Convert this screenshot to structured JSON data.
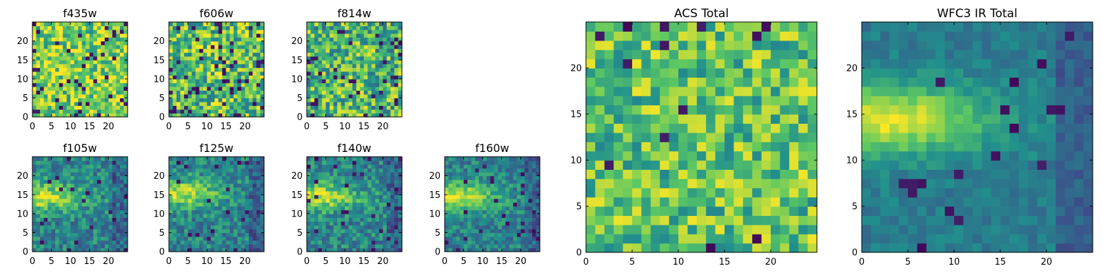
{
  "figure": {
    "description_panels": 9
  },
  "colormap": {
    "name": "viridis",
    "stops": [
      "#440154",
      "#3b528b",
      "#21908d",
      "#5dc962",
      "#fde725"
    ]
  },
  "chart_data": [
    {
      "type": "heatmap",
      "title": "f435w",
      "grid_size": 25,
      "xlim": [
        0,
        25
      ],
      "ylim": [
        0,
        25
      ],
      "xticks": [
        0,
        5,
        10,
        15,
        20
      ],
      "yticks": [
        0,
        5,
        10,
        15,
        20
      ],
      "pattern": "noise",
      "mean_level": 0.78,
      "noise": 0.28,
      "dark_fraction": 0.07,
      "seed": 11
    },
    {
      "type": "heatmap",
      "title": "f606w",
      "grid_size": 25,
      "xlim": [
        0,
        25
      ],
      "ylim": [
        0,
        25
      ],
      "xticks": [
        0,
        5,
        10,
        15,
        20
      ],
      "yticks": [
        0,
        5,
        10,
        15,
        20
      ],
      "pattern": "noise",
      "mean_level": 0.72,
      "noise": 0.32,
      "dark_fraction": 0.08,
      "seed": 23
    },
    {
      "type": "heatmap",
      "title": "f814w",
      "grid_size": 25,
      "xlim": [
        0,
        25
      ],
      "ylim": [
        0,
        25
      ],
      "xticks": [
        0,
        5,
        10,
        15,
        20
      ],
      "yticks": [
        0,
        5,
        10,
        15,
        20
      ],
      "pattern": "noise",
      "mean_level": 0.66,
      "noise": 0.32,
      "dark_fraction": 0.06,
      "seed": 37
    },
    {
      "type": "heatmap",
      "title": "f105w",
      "grid_size": 25,
      "xlim": [
        0,
        25
      ],
      "ylim": [
        0,
        25
      ],
      "xticks": [
        0,
        5,
        10,
        15,
        20
      ],
      "yticks": [
        0,
        5,
        10,
        15,
        20
      ],
      "pattern": "source",
      "mean_level": 0.45,
      "noise": 0.18,
      "dark_fraction": 0.04,
      "blob_peak": [
        2,
        14
      ],
      "blob_strength": 0.45,
      "seed": 41
    },
    {
      "type": "heatmap",
      "title": "f125w",
      "grid_size": 25,
      "xlim": [
        0,
        25
      ],
      "ylim": [
        0,
        25
      ],
      "xticks": [
        0,
        5,
        10,
        15,
        20
      ],
      "yticks": [
        0,
        5,
        10,
        15,
        20
      ],
      "pattern": "source",
      "mean_level": 0.45,
      "noise": 0.18,
      "dark_fraction": 0.04,
      "blob_peak": [
        2,
        15
      ],
      "blob_strength": 0.45,
      "seed": 53
    },
    {
      "type": "heatmap",
      "title": "f140w",
      "grid_size": 25,
      "xlim": [
        0,
        25
      ],
      "ylim": [
        0,
        25
      ],
      "xticks": [
        0,
        5,
        10,
        15,
        20
      ],
      "yticks": [
        0,
        5,
        10,
        15,
        20
      ],
      "pattern": "source",
      "mean_level": 0.46,
      "noise": 0.18,
      "dark_fraction": 0.04,
      "blob_peak": [
        2,
        14
      ],
      "blob_strength": 0.45,
      "seed": 67
    },
    {
      "type": "heatmap",
      "title": "f160w",
      "grid_size": 25,
      "xlim": [
        0,
        25
      ],
      "ylim": [
        0,
        25
      ],
      "xticks": [
        0,
        5,
        10,
        15,
        20
      ],
      "yticks": [
        0,
        5,
        10,
        15,
        20
      ],
      "pattern": "source",
      "mean_level": 0.44,
      "noise": 0.16,
      "dark_fraction": 0.04,
      "blob_peak": [
        2,
        14
      ],
      "blob_strength": 0.5,
      "seed": 79
    },
    {
      "type": "heatmap",
      "title": "ACS Total",
      "grid_size": 25,
      "xlim": [
        0,
        25
      ],
      "ylim": [
        0,
        25
      ],
      "xticks": [
        0,
        5,
        10,
        15,
        20
      ],
      "yticks": [
        0,
        5,
        10,
        15,
        20
      ],
      "pattern": "noise",
      "mean_level": 0.72,
      "noise": 0.26,
      "dark_fraction": 0.03,
      "seed": 97
    },
    {
      "type": "heatmap",
      "title": "WFC3 IR Total",
      "grid_size": 25,
      "xlim": [
        0,
        25
      ],
      "ylim": [
        0,
        25
      ],
      "xticks": [
        0,
        5,
        10,
        15,
        20
      ],
      "yticks": [
        0,
        5,
        10,
        15,
        20
      ],
      "pattern": "source",
      "mean_level": 0.42,
      "noise": 0.08,
      "dark_fraction": 0.03,
      "blob_peak": [
        2,
        14
      ],
      "blob_strength": 0.55,
      "seed": 101
    }
  ]
}
